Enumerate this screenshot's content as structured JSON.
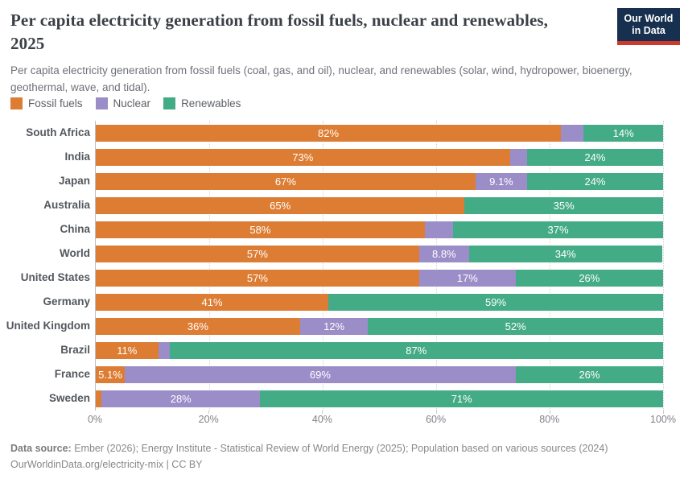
{
  "header": {
    "title": "Per capita electricity generation from fossil fuels, nuclear and renewables, 2025",
    "subtitle": "Per capita electricity generation from fossil fuels (coal, gas, and oil), nuclear, and renewables (solar, wind, hydropower, bioenergy, geothermal, wave, and tidal).",
    "logo": {
      "line1": "Our World",
      "line2": "in Data"
    }
  },
  "chart_data": {
    "type": "bar",
    "orientation": "horizontal",
    "stacked": true,
    "title": "Per capita electricity generation from fossil fuels, nuclear and renewables, 2025",
    "categories": [
      "South Africa",
      "India",
      "Japan",
      "Australia",
      "China",
      "World",
      "United States",
      "Germany",
      "United Kingdom",
      "Brazil",
      "France",
      "Sweden"
    ],
    "series": [
      {
        "name": "Fossil fuels",
        "color": "#DD7D34",
        "values": [
          82,
          73,
          67,
          65,
          58,
          57,
          57,
          41,
          36,
          11,
          5.1,
          1
        ],
        "labels": [
          "82%",
          "73%",
          "67%",
          "65%",
          "58%",
          "57%",
          "57%",
          "41%",
          "36%",
          "11%",
          "5.1%",
          ""
        ]
      },
      {
        "name": "Nuclear",
        "color": "#9A8DC8",
        "values": [
          4,
          3,
          9.1,
          0,
          5,
          8.8,
          17,
          0,
          12,
          2,
          69,
          28
        ],
        "labels": [
          "",
          "",
          "9.1%",
          "",
          "",
          "8.8%",
          "17%",
          "",
          "12%",
          "",
          "69%",
          "28%"
        ]
      },
      {
        "name": "Renewables",
        "color": "#44AB87",
        "values": [
          14,
          24,
          24,
          35,
          37,
          34,
          26,
          59,
          52,
          87,
          26,
          71
        ],
        "labels": [
          "14%",
          "24%",
          "24%",
          "35%",
          "37%",
          "34%",
          "26%",
          "59%",
          "52%",
          "87%",
          "26%",
          "71%"
        ]
      }
    ],
    "xlabel": "",
    "ylabel": "",
    "xlim": [
      0,
      100
    ],
    "x_ticks": [
      "0%",
      "20%",
      "40%",
      "60%",
      "80%",
      "100%"
    ],
    "x_tick_values": [
      0,
      20,
      40,
      60,
      80,
      100
    ],
    "grid": "dotted-vertical",
    "legend_position": "top-left",
    "value_label_color": "#ffffff"
  },
  "footer": {
    "source_label": "Data source:",
    "source_text": " Ember (2026); Energy Institute - Statistical Review of World Energy (2025); Population based on various sources (2024)",
    "note": "OurWorldinData.org/electricity-mix | CC BY"
  },
  "colors": {
    "background": "#ffffff",
    "title_text": "#3b4046",
    "subtitle_text": "#6e7179",
    "axis_text": "#7f8288",
    "logo_bg": "#18304f",
    "logo_accent": "#cd3a2d",
    "fossil": "#DD7D34",
    "nuclear": "#9A8DC8",
    "renewables": "#44AB87"
  }
}
